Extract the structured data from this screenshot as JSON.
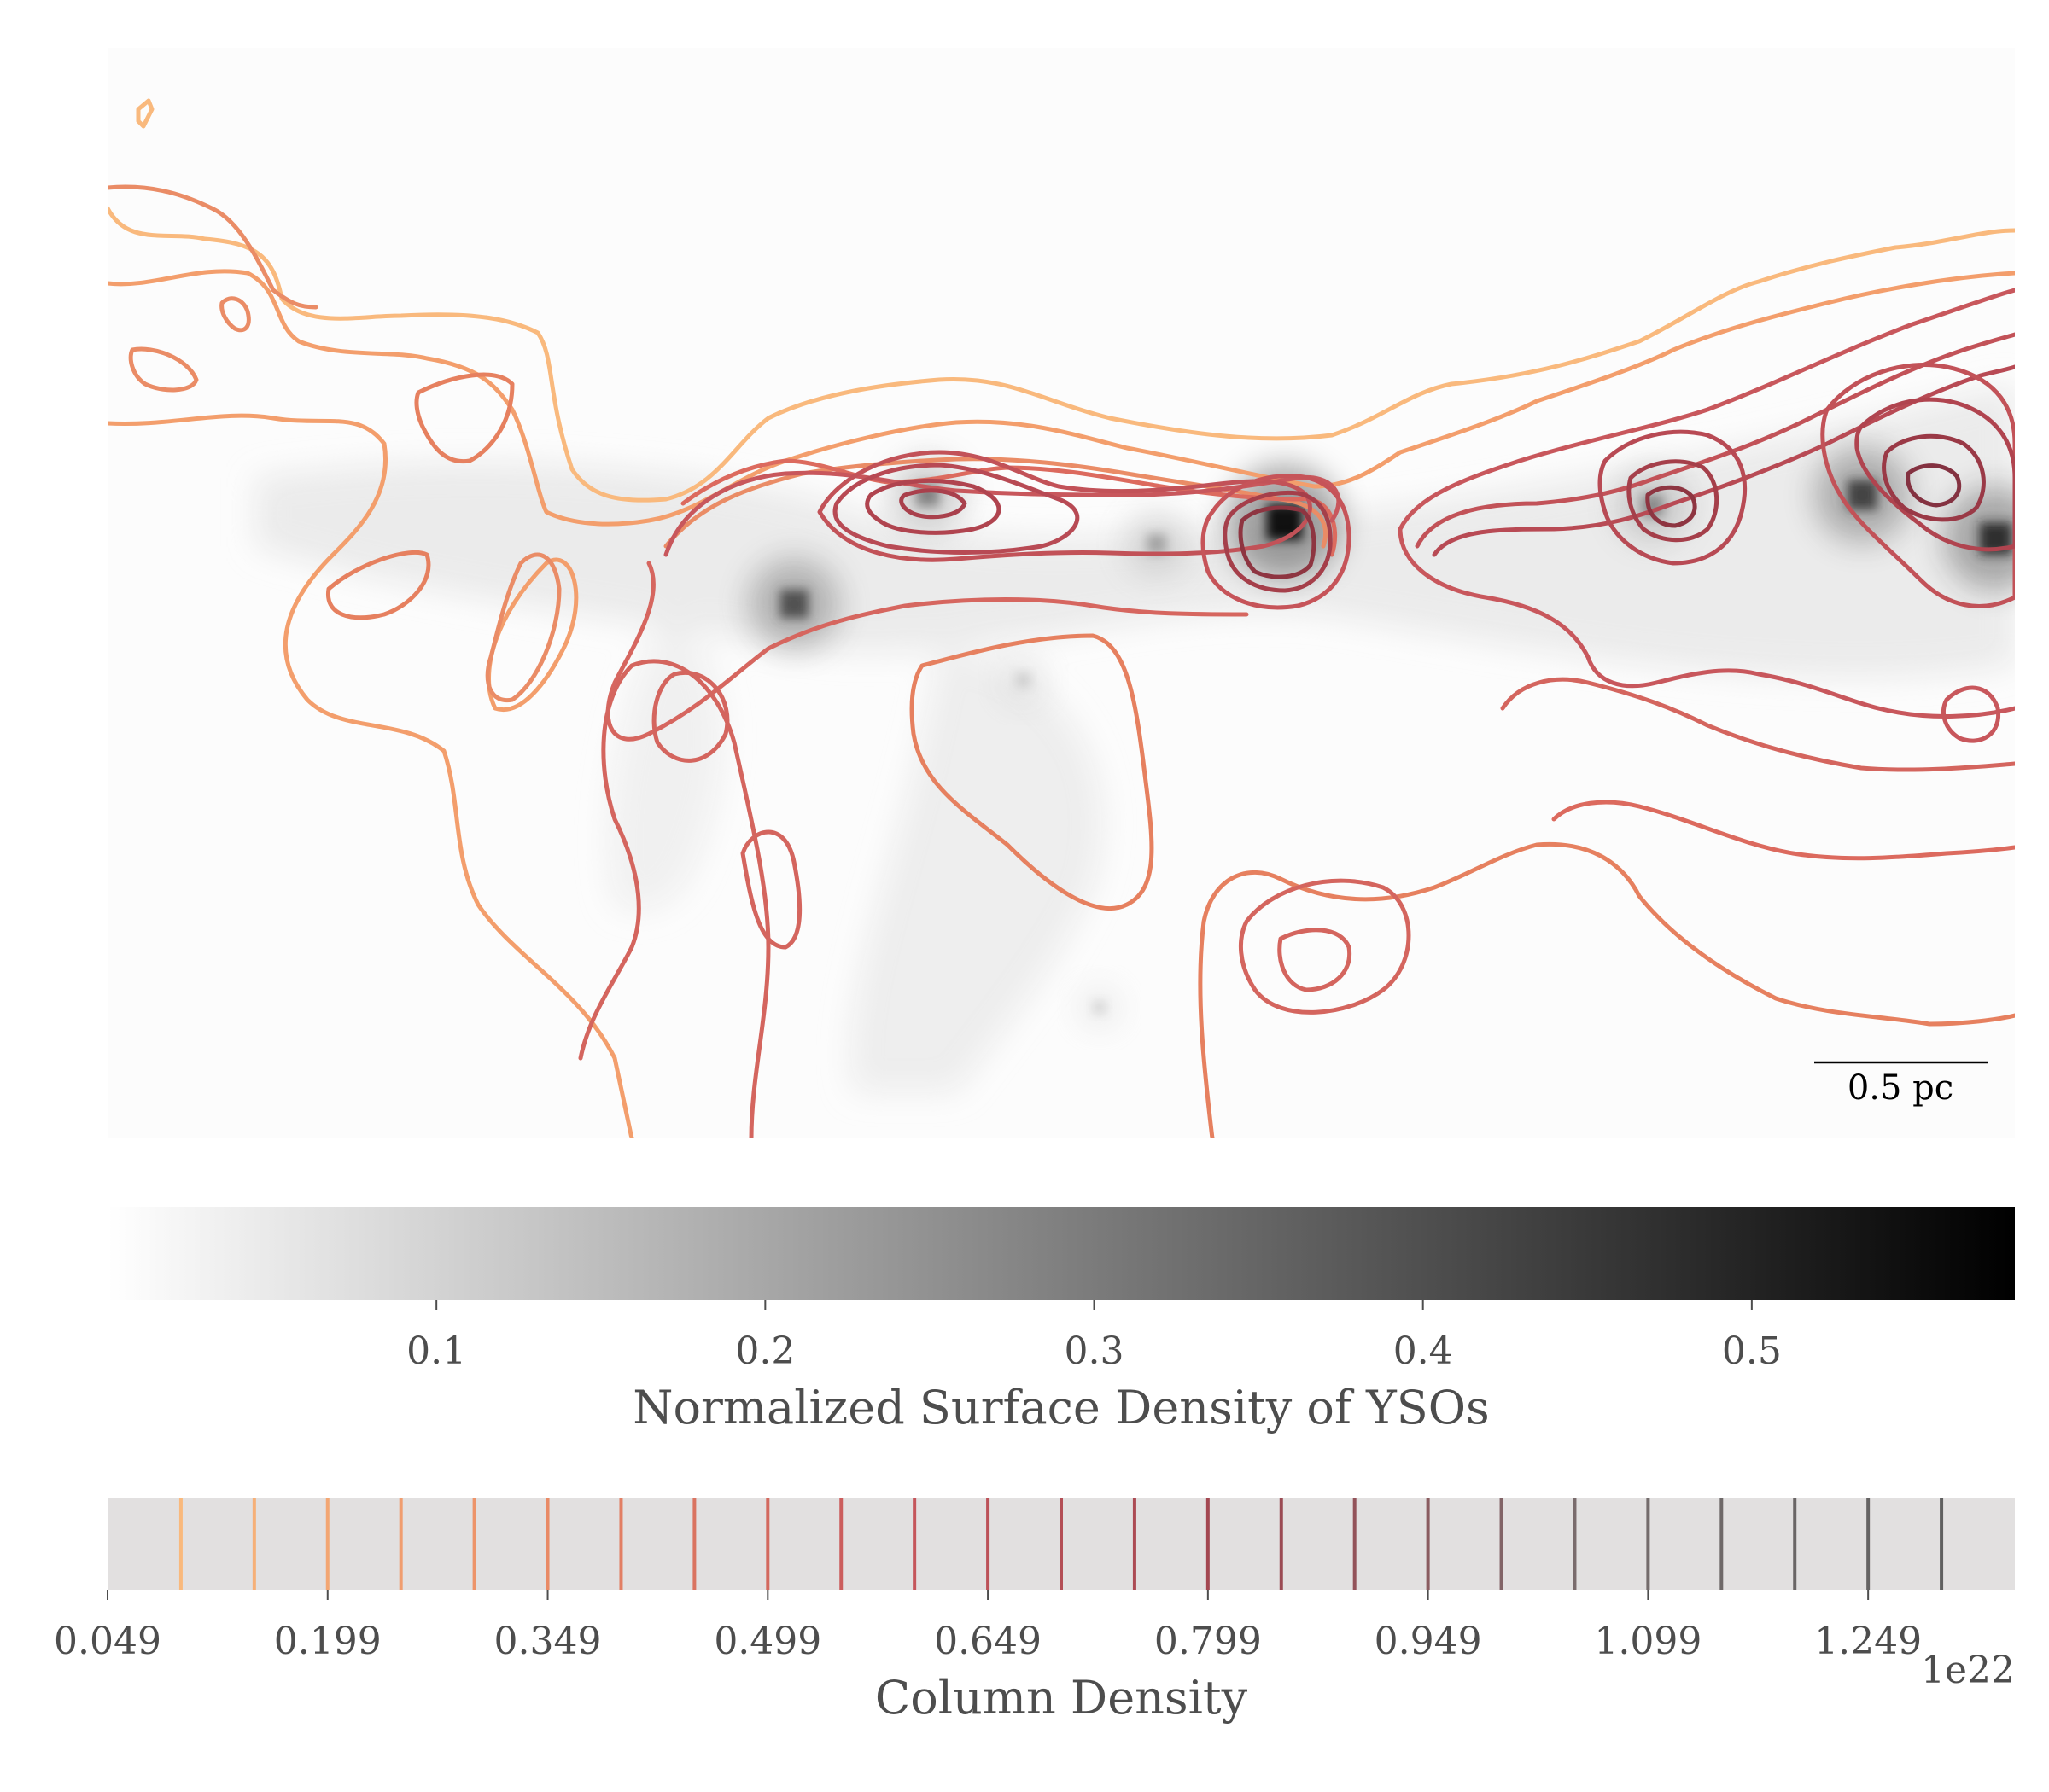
{
  "chart_data": {
    "type": "heatmap",
    "heatmap_colormap": "Greys",
    "contour_colormap": "orange-red-brown",
    "colorbar_density": {
      "label": "Normalized Surface Density of YSOs",
      "range": [
        0.0,
        0.58
      ],
      "ticks": [
        0.1,
        0.2,
        0.3,
        0.4,
        0.5
      ],
      "tick_labels": [
        "0.1",
        "0.2",
        "0.3",
        "0.4",
        "0.5"
      ],
      "colors": [
        "#ffffff",
        "#000000"
      ]
    },
    "colorbar_column": {
      "label": "Column Density",
      "offset_label": "1e22",
      "range": [
        0.049,
        1.349
      ],
      "ticks": [
        0.049,
        0.199,
        0.349,
        0.499,
        0.649,
        0.799,
        0.949,
        1.099,
        1.249
      ],
      "tick_labels": [
        "0.049",
        "0.199",
        "0.349",
        "0.499",
        "0.649",
        "0.799",
        "0.949",
        "1.099",
        "1.249"
      ],
      "contour_levels": [
        0.099,
        0.149,
        0.199,
        0.249,
        0.299,
        0.349,
        0.399,
        0.449,
        0.499,
        0.549,
        0.599,
        0.649,
        0.699,
        0.749,
        0.799,
        0.849,
        0.899,
        0.949,
        0.999,
        1.049,
        1.099,
        1.149,
        1.199,
        1.249,
        1.299
      ],
      "background_color": "#e2e0e0"
    },
    "scale_bar": {
      "label": "0.5 pc"
    },
    "hotspots": [
      {
        "x": 0.617,
        "y": 0.435,
        "value": 0.58
      },
      {
        "x": 0.36,
        "y": 0.51,
        "value": 0.42
      },
      {
        "x": 0.43,
        "y": 0.41,
        "value": 0.3
      },
      {
        "x": 0.55,
        "y": 0.455,
        "value": 0.22
      },
      {
        "x": 0.92,
        "y": 0.41,
        "value": 0.45
      },
      {
        "x": 0.81,
        "y": 0.42,
        "value": 0.28
      },
      {
        "x": 0.99,
        "y": 0.45,
        "value": 0.5
      },
      {
        "x": 0.48,
        "y": 0.58,
        "value": 0.12
      },
      {
        "x": 0.52,
        "y": 0.88,
        "value": 0.1
      }
    ]
  }
}
